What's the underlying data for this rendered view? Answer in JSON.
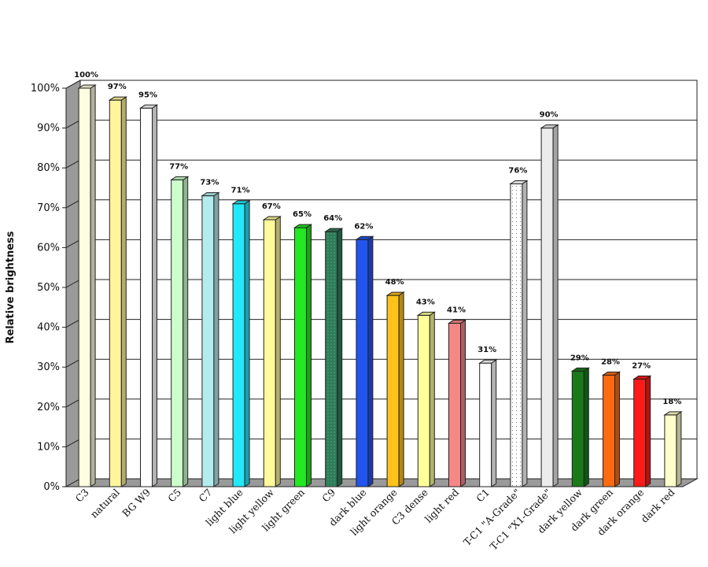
{
  "chart_data": {
    "type": "bar",
    "ylabel": "Relative brightness",
    "ylim": [
      0,
      100
    ],
    "y_unit": "%",
    "y_ticks": [
      0,
      10,
      20,
      30,
      40,
      50,
      60,
      70,
      80,
      90,
      100
    ],
    "grid": true,
    "style": "3d",
    "categories": [
      "C3",
      "natural",
      "BG W9",
      "C5",
      "C7",
      "light blue",
      "light yellow",
      "light green",
      "C9",
      "dark blue",
      "light orange",
      "C3 dense",
      "light red",
      "C1",
      "T-C1 \"A-Grade\"",
      "T-C1 \"X1-Grade\"",
      "dark yellow",
      "dark green",
      "dark orange",
      "dark red"
    ],
    "values": [
      100,
      97,
      95,
      77,
      73,
      71,
      67,
      65,
      64,
      62,
      48,
      43,
      41,
      31,
      76,
      90,
      29,
      28,
      27,
      18
    ],
    "value_labels": [
      "100%",
      "97%",
      "95%",
      "77%",
      "73%",
      "71%",
      "67%",
      "65%",
      "64%",
      "62%",
      "48%",
      "43%",
      "41%",
      "31%",
      "76%",
      "90%",
      "29%",
      "28%",
      "27%",
      "18%"
    ],
    "bar_colors": [
      "#fffde0",
      "#fff59c",
      "#ffffff",
      "#ccffcc",
      "#b3ecec",
      "#22e8f8",
      "#fffa9a",
      "#22e822",
      "#2e7d5a",
      "#2255ee",
      "#ffc21a",
      "#ffff99",
      "#f58787",
      "#ffffff",
      "#ffffff",
      "#ececec",
      "#1a7a1a",
      "#ff6a10",
      "#ff1a1a",
      "#ffffcc"
    ],
    "bar_patterns": [
      "solid",
      "solid",
      "solid",
      "solid",
      "solid",
      "solid",
      "solid",
      "solid",
      "dotted",
      "solid",
      "solid",
      "solid",
      "solid",
      "solid",
      "dotted",
      "solid",
      "solid",
      "solid",
      "solid",
      "solid"
    ]
  }
}
